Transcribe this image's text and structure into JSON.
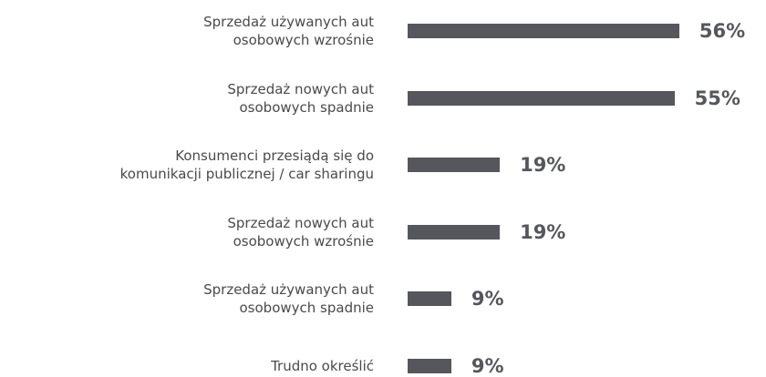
{
  "chart_data": {
    "type": "bar",
    "orientation": "horizontal",
    "color": "#55575c",
    "categories": [
      "Sprzedaż używanych aut\nosobowych wzrośnie",
      "Sprzedaż nowych aut\nosobowych spadnie",
      "Konsumenci przesiądą się do\nkomunikacji publicznej / car sharingu",
      "Sprzedaż nowych aut\nosobowych wzrośnie",
      "Sprzedaż używanych aut\nosobowych spadnie",
      "Trudno określić"
    ],
    "values": [
      56,
      55,
      19,
      19,
      9,
      9
    ],
    "value_labels": [
      "56%",
      "55%",
      "19%",
      "19%",
      "9%",
      "9%"
    ]
  }
}
